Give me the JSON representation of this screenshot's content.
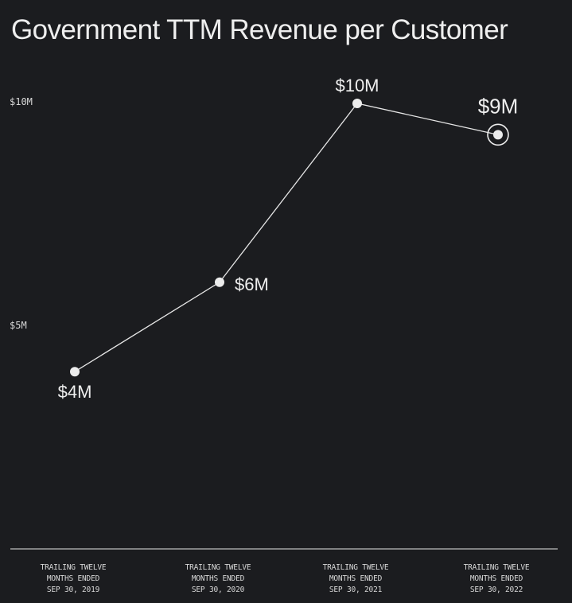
{
  "chart_data": {
    "type": "line",
    "title": "Government TTM Revenue per Customer",
    "xlabel": "",
    "ylabel": "",
    "categories": [
      [
        "TRAILING TWELVE",
        "MONTHS ENDED",
        "SEP 30, 2019"
      ],
      [
        "TRAILING TWELVE",
        "MONTHS ENDED",
        "SEP 30, 2020"
      ],
      [
        "TRAILING TWELVE",
        "MONTHS ENDED",
        "SEP 30, 2021"
      ],
      [
        "TRAILING TWELVE",
        "MONTHS ENDED",
        "SEP 30, 2022"
      ]
    ],
    "values": [
      4,
      6,
      10,
      9.3
    ],
    "value_labels": [
      "$4M",
      "$6M",
      "$10M",
      "$9M"
    ],
    "yticks": [
      {
        "value": 10,
        "label": "$10M"
      },
      {
        "value": 5,
        "label": "$5M"
      }
    ],
    "ylim": [
      0,
      10
    ],
    "grid": false,
    "highlight_index": 3,
    "colors": {
      "background": "#1b1c1f",
      "line": "#e6e6e6",
      "marker": "#ececec",
      "text": "#eeeeee"
    }
  }
}
